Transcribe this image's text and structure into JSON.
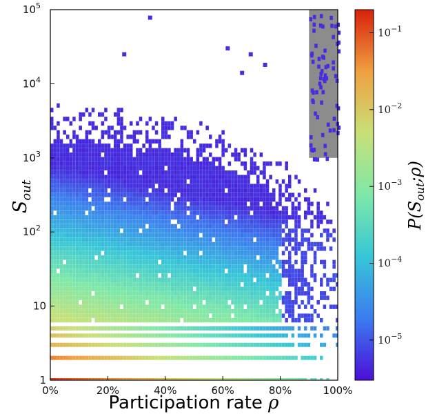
{
  "chart_data": {
    "type": "heatmap",
    "x_label_prefix": "Participation rate ",
    "x_label_symbol": "ρ",
    "y_label_main": "S",
    "y_label_sub": "out",
    "colorbar_label": "P(S_{out};ρ)",
    "colorbar_label_text": "P(S",
    "colorbar_label_sub": "out",
    "colorbar_label_tail": ";ρ)",
    "x_range": [
      0,
      1
    ],
    "x_scale": "linear",
    "x_ticks": [
      {
        "value": 0.0,
        "label": "0%"
      },
      {
        "value": 0.2,
        "label": "20%"
      },
      {
        "value": 0.4,
        "label": "40%"
      },
      {
        "value": 0.6,
        "label": "60%"
      },
      {
        "value": 0.8,
        "label": "80%"
      },
      {
        "value": 1.0,
        "label": "100%"
      }
    ],
    "y_range": [
      1,
      100000
    ],
    "y_scale": "log",
    "y_ticks": [
      {
        "value": 1,
        "base": "1",
        "exp": ""
      },
      {
        "value": 10,
        "base": "10",
        "exp": ""
      },
      {
        "value": 100,
        "base": "10",
        "exp": "2"
      },
      {
        "value": 1000,
        "base": "10",
        "exp": "3"
      },
      {
        "value": 10000,
        "base": "10",
        "exp": "4"
      },
      {
        "value": 100000,
        "base": "10",
        "exp": "5"
      }
    ],
    "colorbar_range": [
      3e-06,
      0.2
    ],
    "colorbar_scale": "log",
    "colorbar_ticks": [
      {
        "value": 1e-05,
        "base": "10",
        "exp": "−5"
      },
      {
        "value": 0.0001,
        "base": "10",
        "exp": "−4"
      },
      {
        "value": 0.001,
        "base": "10",
        "exp": "−3"
      },
      {
        "value": 0.01,
        "base": "10",
        "exp": "−2"
      },
      {
        "value": 0.1,
        "base": "10",
        "exp": "−1"
      }
    ],
    "colormap": "rainbow",
    "colormap_stops": [
      "#4b0fd8",
      "#3b7cf0",
      "#37c6d8",
      "#7ee8a8",
      "#c8e078",
      "#f0a040",
      "#d8200a"
    ],
    "discrete_rows": [
      {
        "s_out": 1,
        "p_at_0": 0.15
      },
      {
        "s_out": 2,
        "p_at_0": 0.05
      },
      {
        "s_out": 3,
        "p_at_0": 0.02
      },
      {
        "s_out": 4,
        "p_at_0": 0.012
      },
      {
        "s_out": 5,
        "p_at_0": 0.008
      }
    ],
    "bulk_distribution": {
      "p_at_origin": 0.006,
      "decay_x_per_unit": 2.8,
      "decay_per_decade": 1.45,
      "upper_edge_s_out": 1500,
      "upper_edge_at_x1": 60
    },
    "shaded_region": {
      "x": [
        0.9,
        1.0
      ],
      "y": [
        1000,
        100000
      ],
      "color": "#808080"
    },
    "outliers": [
      {
        "x": 0.34,
        "y": 78000
      },
      {
        "x": 0.25,
        "y": 25000
      },
      {
        "x": 0.69,
        "y": 25000
      },
      {
        "x": 0.66,
        "y": 14000
      },
      {
        "x": 0.74,
        "y": 18000
      },
      {
        "x": 0.61,
        "y": 30000
      }
    ],
    "grid": false
  }
}
